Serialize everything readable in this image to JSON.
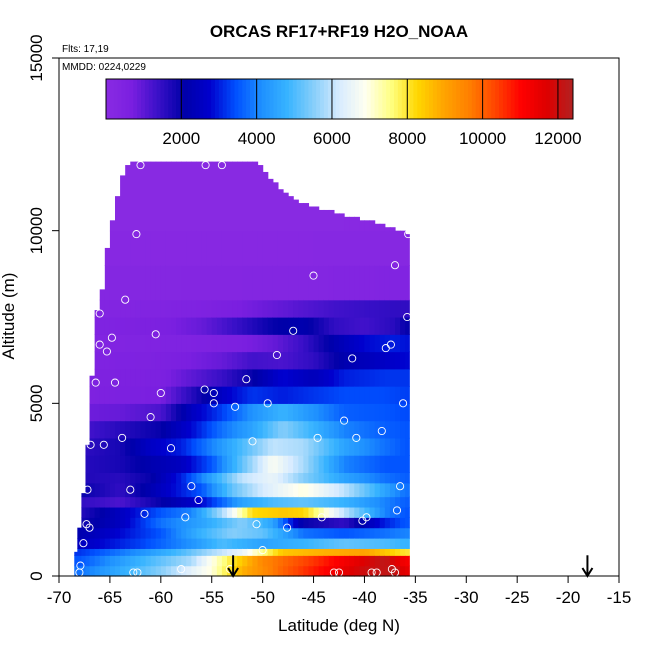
{
  "chart_data": {
    "type": "heatmap",
    "title": "ORCAS RF17+RF19 H2O_NOAA",
    "annotations": [
      "Flts: 17,19",
      "MMDD: 0224,0229"
    ],
    "xlabel": "Latitude (deg N)",
    "ylabel": "Altitude (m)",
    "xlim": [
      -70,
      -15
    ],
    "ylim": [
      0,
      15000
    ],
    "x_ticks": [
      -70,
      -65,
      -60,
      -55,
      -50,
      -45,
      -40,
      -35,
      -30,
      -25,
      -20,
      -15
    ],
    "y_ticks": [
      0,
      5000,
      10000,
      15000
    ],
    "colorbar": {
      "min": 0,
      "max": 12400,
      "ticks": [
        2000,
        4000,
        6000,
        8000,
        10000,
        12000
      ],
      "colors": [
        "#8a2be2",
        "#7a1fe0",
        "#3a10c8",
        "#0000a8",
        "#0000cd",
        "#0050ff",
        "#1e90ff",
        "#38b4ff",
        "#87cefa",
        "#d8ecff",
        "#fffff0",
        "#ffff80",
        "#ffd700",
        "#ffa500",
        "#ff7f00",
        "#ff4500",
        "#ff0000",
        "#dd0000",
        "#b22222"
      ]
    },
    "grid": false,
    "field": {
      "lat_edges": [
        -68.5,
        -68.2,
        -67.8,
        -67.4,
        -67.0,
        -66.5,
        -66.0,
        -65.5,
        -65.0,
        -64.5,
        -64.0,
        -63.5,
        -63.0,
        -62.5,
        -62.0,
        -61.5,
        -61.0,
        -60.5,
        -60.0,
        -59.5,
        -59.0,
        -58.5,
        -58.0,
        -57.5,
        -57.0,
        -56.5,
        -56.0,
        -55.5,
        -55.0,
        -54.5,
        -54.0,
        -53.5,
        -53.0,
        -52.5,
        -52.0,
        -51.5,
        -51.0,
        -50.5,
        -50.0,
        -49.5,
        -49.0,
        -48.5,
        -48.0,
        -47.5,
        -47.0,
        -46.5,
        -46.0,
        -45.5,
        -45.0,
        -44.5,
        -44.0,
        -43.5,
        -43.0,
        -42.5,
        -42.0,
        -41.5,
        -41.0,
        -40.5,
        -40.0,
        -39.5,
        -39.0,
        -38.5,
        -38.0,
        -37.5,
        -37.0,
        -36.5,
        -36.0,
        -35.6
      ],
      "top_altitude": [
        700,
        1400,
        2400,
        3800,
        5800,
        7700,
        8300,
        9500,
        10300,
        11000,
        11600,
        11900,
        12000,
        12000,
        12000,
        12000,
        12000,
        12000,
        12000,
        12000,
        12000,
        12000,
        12000,
        12000,
        12000,
        12000,
        12000,
        12000,
        12000,
        12000,
        12000,
        12000,
        12000,
        12000,
        12000,
        12000,
        12000,
        11900,
        11700,
        11500,
        11400,
        11200,
        11100,
        11000,
        10900,
        10800,
        10800,
        10700,
        10700,
        10600,
        10600,
        10600,
        10500,
        10500,
        10400,
        10400,
        10400,
        10300,
        10300,
        10300,
        10200,
        10200,
        10100,
        10100,
        10000,
        10000,
        9900
      ],
      "layer_boundaries": [
        0,
        300,
        600,
        800,
        1100,
        1400,
        1700,
        2000,
        2300,
        2700,
        3000,
        3500,
        4000,
        4500,
        5000,
        5500,
        6000,
        6500,
        7000,
        7500,
        8000,
        9000,
        10000,
        12000
      ],
      "rows": [
        {
          "lat": [
            -68,
            -60,
            -55,
            -52,
            -48,
            -44,
            -40,
            -37,
            -36
          ],
          "h2o": [
            3800,
            5500,
            7000,
            8800,
            10000,
            11000,
            12000,
            12200,
            11500
          ]
        },
        {
          "lat": [
            -68,
            -62,
            -57,
            -53,
            -50,
            -45,
            -41,
            -38,
            -36
          ],
          "h2o": [
            3500,
            4800,
            5800,
            8000,
            9500,
            10500,
            11500,
            12200,
            11200
          ]
        },
        {
          "lat": [
            -68,
            -62,
            -58,
            -55,
            -52,
            -48,
            -44,
            -40,
            -36
          ],
          "h2o": [
            3200,
            4200,
            5000,
            5800,
            6500,
            8500,
            8800,
            9000,
            8000
          ]
        },
        {
          "lat": [
            -68,
            -62,
            -57,
            -54,
            -50,
            -46,
            -42,
            -38,
            -36
          ],
          "h2o": [
            2500,
            3300,
            4200,
            5000,
            4500,
            4800,
            5200,
            5000,
            4800
          ]
        },
        {
          "lat": [
            -68,
            -64,
            -60,
            -56,
            -53,
            -50,
            -46,
            -42,
            -38,
            -36
          ],
          "h2o": [
            2200,
            2800,
            3500,
            4800,
            5500,
            5200,
            3800,
            3500,
            3800,
            4000
          ]
        },
        {
          "lat": [
            -68,
            -64,
            -60,
            -56,
            -52,
            -49,
            -46,
            -42,
            -38,
            -36
          ],
          "h2o": [
            1800,
            2500,
            3800,
            4500,
            5500,
            4500,
            2000,
            1500,
            3000,
            3500
          ]
        },
        {
          "lat": [
            -68,
            -64,
            -60,
            -57,
            -54,
            -51,
            -48,
            -46,
            -42,
            -38,
            -36
          ],
          "h2o": [
            1600,
            2500,
            3500,
            4000,
            5800,
            8200,
            8500,
            8300,
            6000,
            4000,
            3500
          ]
        },
        {
          "lat": [
            -68,
            -64,
            -60,
            -56,
            -52,
            -49,
            -46,
            -42,
            -38,
            -36
          ],
          "h2o": [
            1500,
            1200,
            2000,
            2800,
            4500,
            5000,
            5200,
            4800,
            4000,
            3600
          ]
        },
        {
          "lat": [
            -68,
            -64,
            -60,
            -56,
            -53,
            -50,
            -46,
            -42,
            -38,
            -36
          ],
          "h2o": [
            2000,
            1500,
            2500,
            3500,
            5200,
            6200,
            7000,
            6000,
            4500,
            3800
          ]
        },
        {
          "lat": [
            -68,
            -64,
            -61,
            -58,
            -55,
            -52,
            -49,
            -46,
            -42,
            -38,
            -36
          ],
          "h2o": [
            1700,
            1600,
            2000,
            3000,
            4500,
            6000,
            6500,
            5500,
            4500,
            3800,
            3600
          ]
        },
        {
          "lat": [
            -68,
            -64,
            -61,
            -58,
            -55,
            -52,
            -49,
            -46,
            -42,
            -38,
            -36
          ],
          "h2o": [
            1600,
            1800,
            2200,
            2500,
            3500,
            5200,
            6800,
            5800,
            4000,
            3500,
            3500
          ]
        },
        {
          "lat": [
            -68,
            -64,
            -61,
            -58,
            -55,
            -52,
            -49,
            -46,
            -42,
            -38,
            -36
          ],
          "h2o": [
            1500,
            1800,
            2600,
            3000,
            4000,
            5000,
            6000,
            5800,
            4500,
            3800,
            3500
          ]
        },
        {
          "lat": [
            -68,
            -64,
            -60,
            -57,
            -54,
            -51,
            -48,
            -45,
            -42,
            -38,
            -36
          ],
          "h2o": [
            1200,
            1600,
            2000,
            2800,
            3800,
            4500,
            5500,
            4800,
            4000,
            3600,
            3500
          ]
        },
        {
          "lat": [
            -68,
            -64,
            -60,
            -57,
            -54,
            -51,
            -48,
            -45,
            -42,
            -38,
            -36
          ],
          "h2o": [
            800,
            900,
            1200,
            2500,
            3300,
            4200,
            4800,
            4200,
            3600,
            3500,
            3400
          ]
        },
        {
          "lat": [
            -68,
            -64,
            -60,
            -57,
            -54,
            -51,
            -48,
            -45,
            -42,
            -38,
            -36
          ],
          "h2o": [
            500,
            600,
            700,
            1600,
            2600,
            3200,
            3000,
            3200,
            3400,
            3400,
            3300
          ]
        },
        {
          "lat": [
            -68,
            -64,
            -60,
            -57,
            -54,
            -51,
            -48,
            -45,
            -42,
            -38,
            -36
          ],
          "h2o": [
            500,
            550,
            600,
            1000,
            1400,
            2000,
            2800,
            2400,
            3000,
            3200,
            3200
          ]
        },
        {
          "lat": [
            -68,
            -64,
            -60,
            -57,
            -54,
            -51,
            -48,
            -45,
            -42,
            -38,
            -36
          ],
          "h2o": [
            450,
            500,
            550,
            700,
            900,
            1300,
            1200,
            1500,
            2200,
            2600,
            2800
          ]
        },
        {
          "lat": [
            -68,
            -64,
            -60,
            -56,
            -52,
            -49,
            -46,
            -43,
            -40,
            -37,
            -36
          ],
          "h2o": [
            350,
            400,
            450,
            500,
            650,
            900,
            1400,
            2200,
            2800,
            3000,
            2900
          ]
        },
        {
          "lat": [
            -68,
            -64,
            -60,
            -56,
            -52,
            -49,
            -46,
            -43,
            -40,
            -37,
            -36
          ],
          "h2o": [
            400,
            500,
            600,
            900,
            1500,
            2000,
            2200,
            1500,
            1300,
            1600,
            2000
          ]
        },
        {
          "lat": [
            -68,
            -64,
            -60,
            -56,
            -52,
            -49,
            -46,
            -43,
            -40,
            -37,
            -36
          ],
          "h2o": [
            300,
            350,
            400,
            500,
            700,
            900,
            1100,
            1300,
            1400,
            1500,
            1500
          ]
        },
        {
          "lat": [
            -68,
            -60,
            -52,
            -45,
            -36
          ],
          "h2o": [
            250,
            250,
            280,
            300,
            400
          ]
        },
        {
          "lat": [
            -68,
            -60,
            -52,
            -45,
            -36
          ],
          "h2o": [
            150,
            150,
            150,
            150,
            180
          ]
        },
        {
          "lat": [
            -68,
            -60,
            -52,
            -45,
            -36
          ],
          "h2o": [
            80,
            80,
            80,
            80,
            100
          ]
        }
      ]
    },
    "markers": {
      "type": "open-circle",
      "points": [
        [
          -67.9,
          300
        ],
        [
          -68.0,
          100
        ],
        [
          -67.6,
          950
        ],
        [
          -67.3,
          1500
        ],
        [
          -67.0,
          1400
        ],
        [
          -67.2,
          2500
        ],
        [
          -66.9,
          3800
        ],
        [
          -66.4,
          5600
        ],
        [
          -65.6,
          3800
        ],
        [
          -66.0,
          6700
        ],
        [
          -66.0,
          7600
        ],
        [
          -65.3,
          6500
        ],
        [
          -64.8,
          6900
        ],
        [
          -64.5,
          5600
        ],
        [
          -63.8,
          4000
        ],
        [
          -63.0,
          2500
        ],
        [
          -62.7,
          100
        ],
        [
          -62.3,
          100
        ],
        [
          -61.6,
          1800
        ],
        [
          -61.0,
          4600
        ],
        [
          -60.0,
          5300
        ],
        [
          -60.5,
          7000
        ],
        [
          -59.0,
          3700
        ],
        [
          -58.0,
          200
        ],
        [
          -57.6,
          1700
        ],
        [
          -57.0,
          2600
        ],
        [
          -56.3,
          2200
        ],
        [
          -55.7,
          5400
        ],
        [
          -54.8,
          5300
        ],
        [
          -53.2,
          200
        ],
        [
          -52.7,
          4900
        ],
        [
          -51.6,
          5700
        ],
        [
          -51.0,
          3900
        ],
        [
          -50.6,
          1500
        ],
        [
          -50.0,
          750
        ],
        [
          -49.5,
          5000
        ],
        [
          -48.6,
          6400
        ],
        [
          -47.6,
          1400
        ],
        [
          -47.0,
          7100
        ],
        [
          -46.0,
          11000
        ],
        [
          -45.0,
          8700
        ],
        [
          -44.6,
          4000
        ],
        [
          -44.2,
          1700
        ],
        [
          -43.0,
          100
        ],
        [
          -42.5,
          100
        ],
        [
          -42.0,
          4500
        ],
        [
          -41.2,
          6300
        ],
        [
          -40.8,
          4000
        ],
        [
          -40.2,
          1600
        ],
        [
          -39.8,
          1700
        ],
        [
          -39.3,
          100
        ],
        [
          -38.8,
          100
        ],
        [
          -38.3,
          4200
        ],
        [
          -37.9,
          6600
        ],
        [
          -37.4,
          6700
        ],
        [
          -37.0,
          9000
        ],
        [
          -36.8,
          1900
        ],
        [
          -36.5,
          2600
        ],
        [
          -36.2,
          5000
        ],
        [
          -35.8,
          7500
        ],
        [
          -35.7,
          9900
        ],
        [
          -37.0,
          100
        ],
        [
          -37.3,
          200
        ],
        [
          -54.8,
          5000
        ],
        [
          -62.4,
          9900
        ],
        [
          -63.5,
          8000
        ],
        [
          -49.0,
          11900
        ],
        [
          -62.0,
          11900
        ],
        [
          -54.0,
          11900
        ],
        [
          -55.6,
          11900
        ]
      ]
    },
    "arrows": [
      {
        "lat": -52.9,
        "altitude_top": 600,
        "altitude_bottom": 0
      },
      {
        "lat": -18.1,
        "altitude_top": 600,
        "altitude_bottom": 0
      }
    ]
  }
}
